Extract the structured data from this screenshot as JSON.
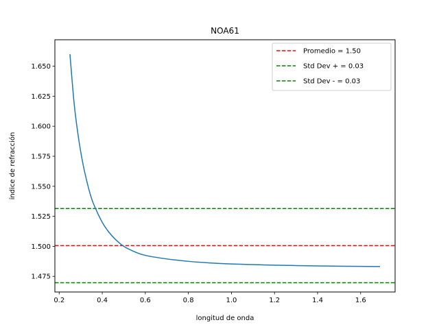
{
  "chart_data": {
    "type": "line",
    "title": "NOA61",
    "xlabel": "longitud de onda",
    "ylabel": "índice de refracción",
    "xlim": [
      0.18,
      1.76
    ],
    "ylim": [
      1.462,
      1.672
    ],
    "x_ticks": [
      "0.2",
      "0.4",
      "0.6",
      "0.8",
      "1.0",
      "1.2",
      "1.4",
      "1.6"
    ],
    "x_tick_values": [
      0.2,
      0.4,
      0.6,
      0.8,
      1.0,
      1.2,
      1.4,
      1.6
    ],
    "y_ticks": [
      "1.475",
      "1.500",
      "1.525",
      "1.550",
      "1.575",
      "1.600",
      "1.625",
      "1.650"
    ],
    "y_tick_values": [
      1.475,
      1.5,
      1.525,
      1.55,
      1.575,
      1.6,
      1.625,
      1.65
    ],
    "grid": false,
    "legend_position": "top-right",
    "series": [
      {
        "color": "#1f77b4",
        "x": [
          0.25,
          0.27,
          0.29,
          0.31,
          0.33,
          0.35,
          0.37,
          0.4,
          0.43,
          0.46,
          0.5,
          0.55,
          0.6,
          0.7,
          0.8,
          0.9,
          1.0,
          1.1,
          1.2,
          1.3,
          1.4,
          1.5,
          1.6,
          1.69
        ],
        "y": [
          1.66,
          1.618,
          1.59,
          1.569,
          1.553,
          1.54,
          1.531,
          1.52,
          1.512,
          1.506,
          1.5,
          1.4955,
          1.4925,
          1.4895,
          1.4875,
          1.4862,
          1.4853,
          1.4848,
          1.4843,
          1.484,
          1.4837,
          1.4835,
          1.4833,
          1.4832
        ]
      }
    ],
    "hlines": [
      {
        "name": "Promedio = 1.50",
        "y": 1.5006,
        "color": "#ff0000",
        "style": "dashed"
      },
      {
        "name": "Std Dev + = 0.03",
        "y": 1.5315,
        "color": "#008000",
        "style": "dashed"
      },
      {
        "name": "Std Dev - = 0.03",
        "y": 1.4697,
        "color": "#008000",
        "style": "dashed"
      }
    ]
  }
}
